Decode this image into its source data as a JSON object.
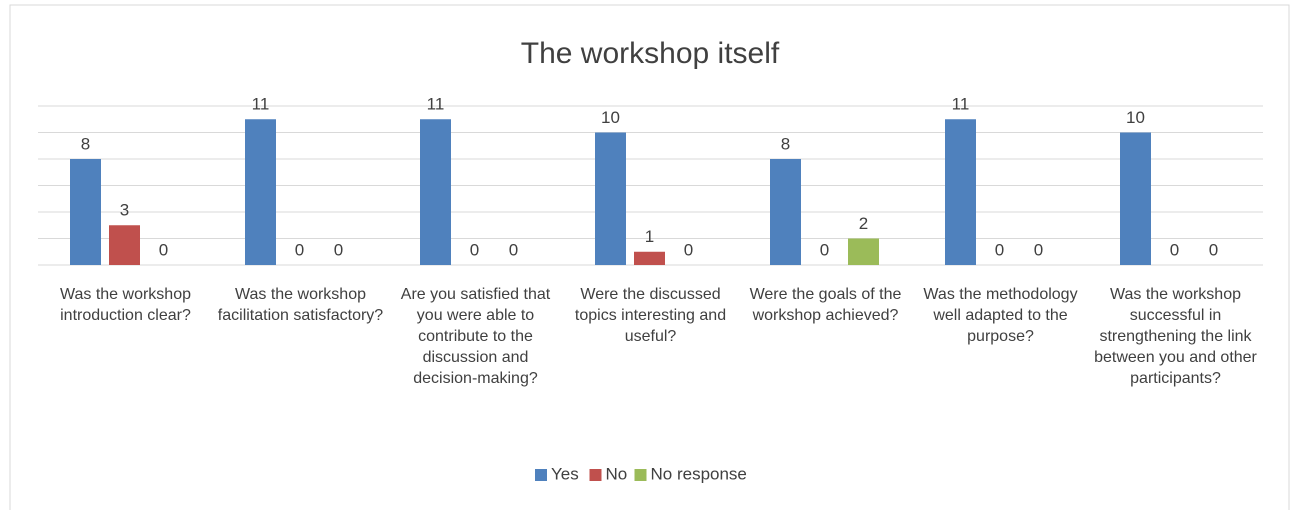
{
  "chart_data": {
    "type": "bar",
    "title": "The workshop itself",
    "categories": [
      "Was the workshop introduction clear?",
      "Was the workshop facilitation satisfactory?",
      "Are you satisfied that you were able to contribute to the discussion and decision-making?",
      "Were the discussed topics interesting and useful?",
      "Were the goals of the workshop achieved?",
      "Was the methodology well adapted to the purpose?",
      "Was the workshop successful in strengthening the link between you and other participants?"
    ],
    "series": [
      {
        "name": "Yes",
        "color": "#4f81bd",
        "values": [
          8,
          11,
          11,
          10,
          8,
          11,
          10
        ]
      },
      {
        "name": "No",
        "color": "#c0504d",
        "values": [
          3,
          0,
          0,
          1,
          0,
          0,
          0
        ]
      },
      {
        "name": "No response",
        "color": "#9bbb59",
        "values": [
          0,
          0,
          0,
          0,
          2,
          0,
          0
        ]
      }
    ],
    "ylim": [
      0,
      12
    ],
    "yticks": [
      0,
      2,
      4,
      6,
      8,
      10,
      12
    ],
    "grid": true,
    "legend": "bottom"
  }
}
